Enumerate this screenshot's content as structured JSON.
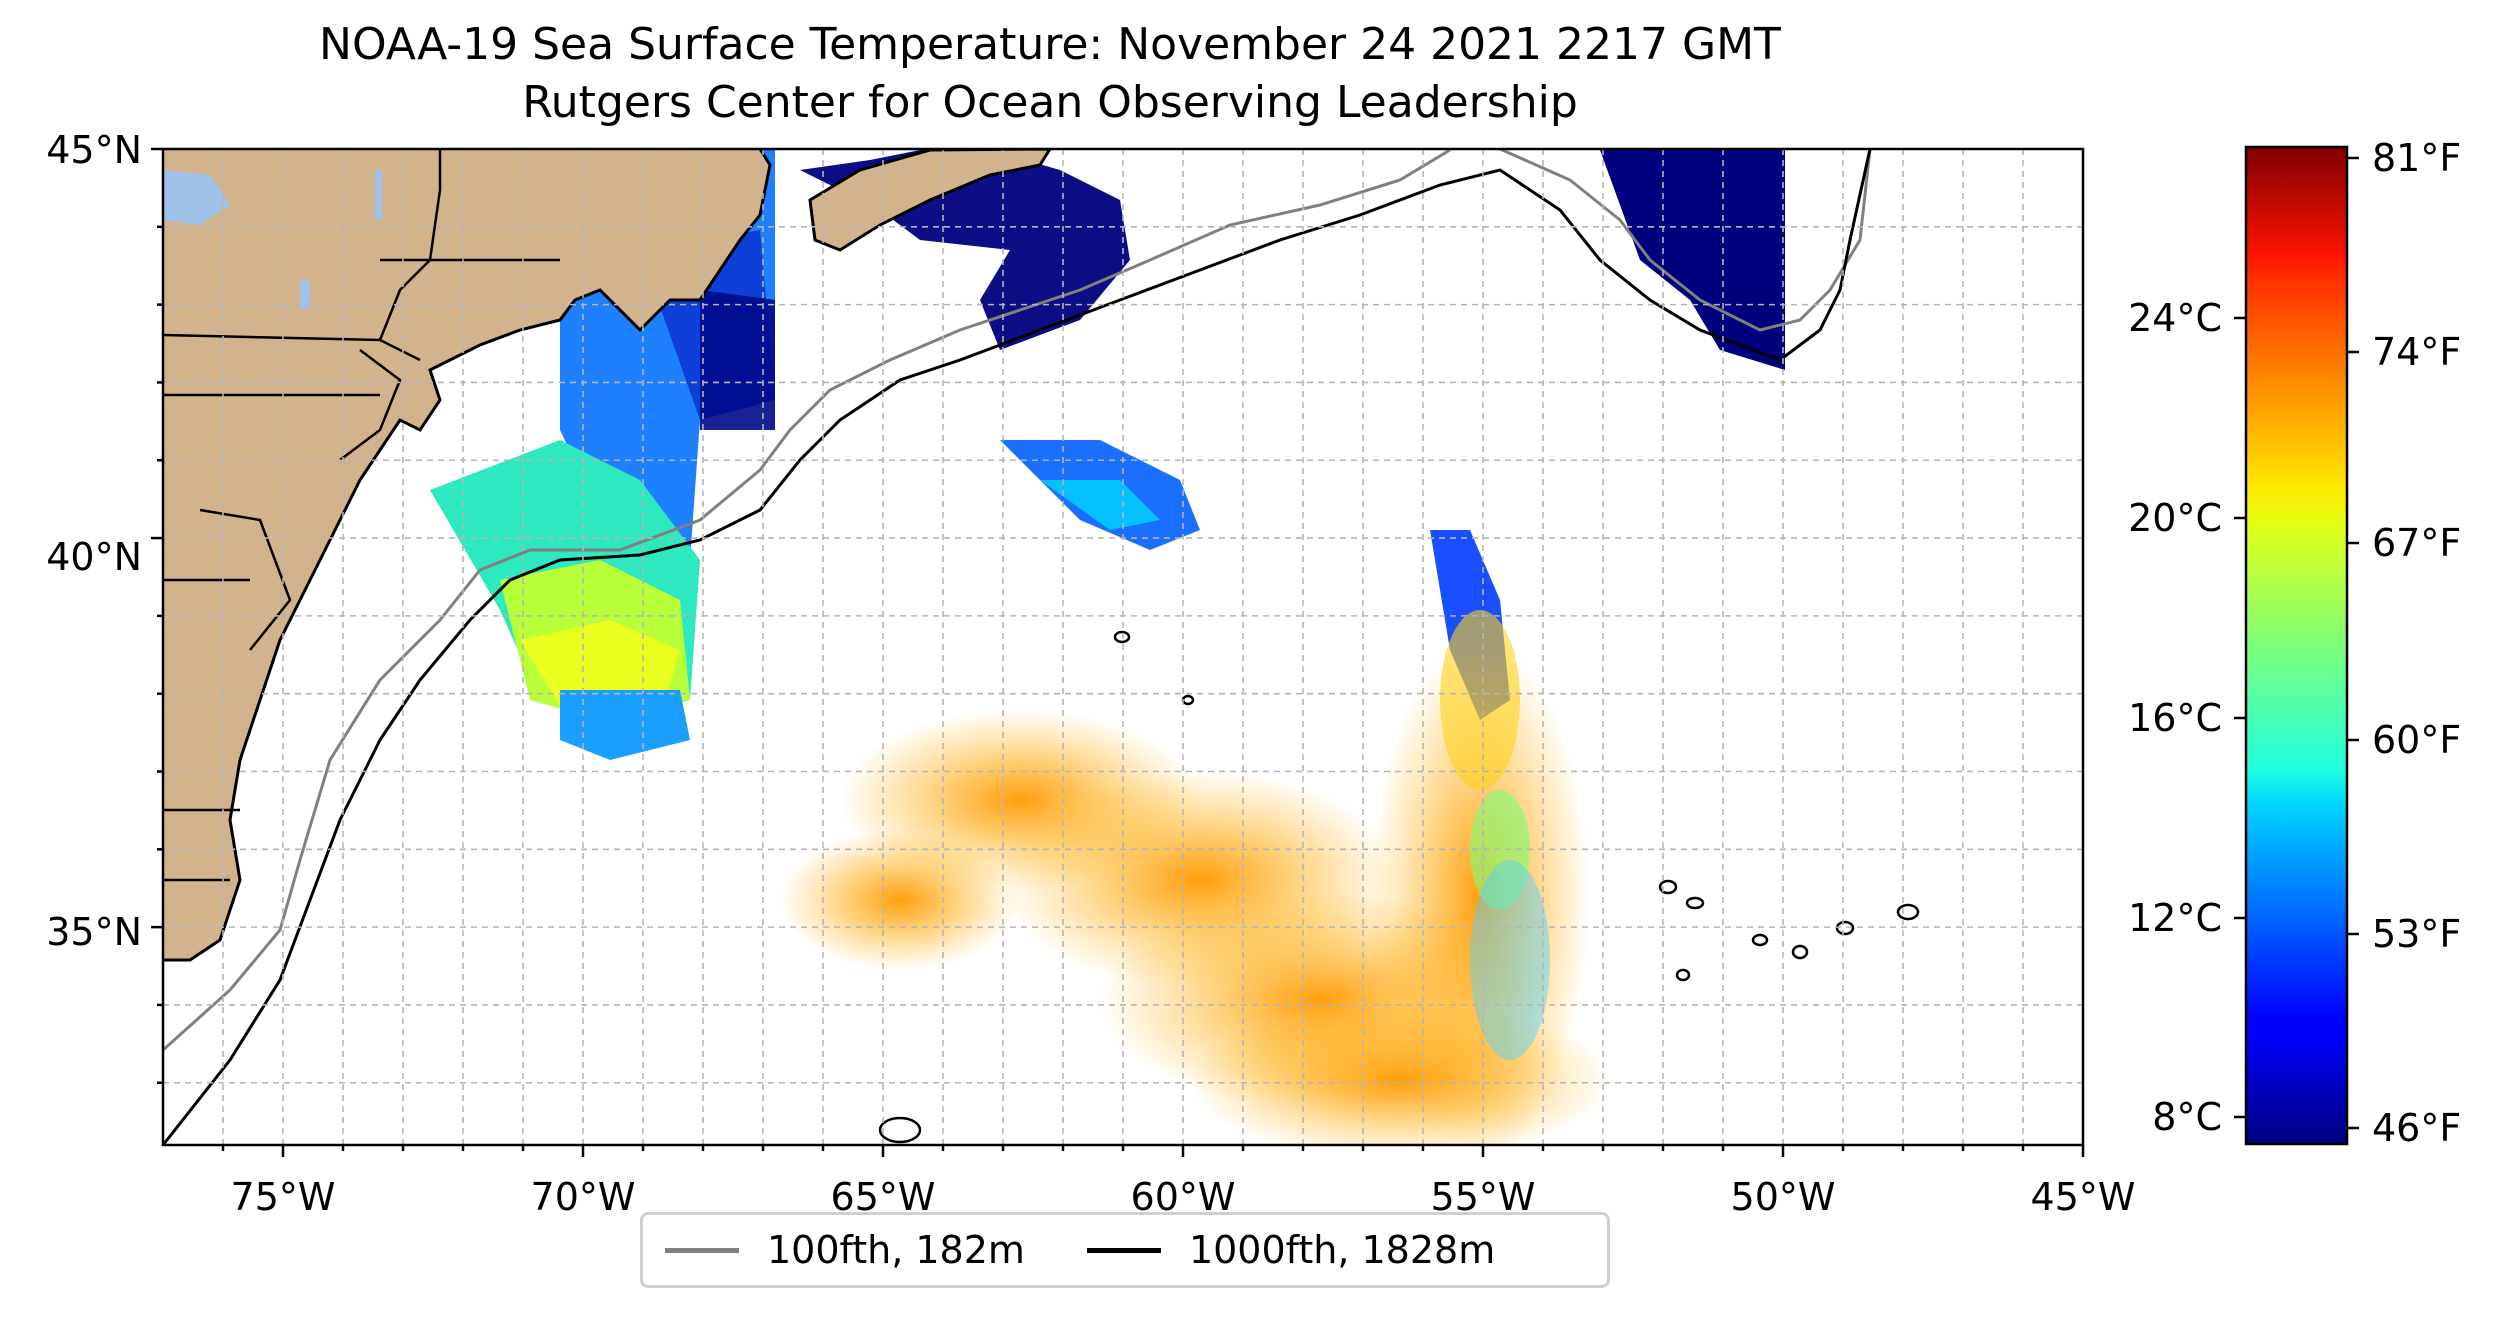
{
  "title": "NOAA-19 Sea Surface Temperature: November 24 2021 2217 GMT",
  "subtitle": "Rutgers Center for Ocean Observing Leadership",
  "colors": {
    "land": "#d2b48c",
    "lakes": "#9fc0e8",
    "grid": "#b0b0b0",
    "bathy_100": "#808080",
    "bathy_1000": "#000000"
  },
  "map": {
    "lon_range": [
      -77,
      -45
    ],
    "lat_range": [
      32.2,
      45
    ],
    "gridlines": "dashed",
    "lon_ticks": [
      "75°W",
      "70°W",
      "65°W",
      "60°W",
      "55°W",
      "50°W",
      "45°W"
    ],
    "lat_ticks": [
      "45°N",
      "40°N",
      "35°N"
    ]
  },
  "colorbar": {
    "colormap": "jet",
    "celsius_ticks": [
      "24°C",
      "20°C",
      "16°C",
      "12°C",
      "8°C"
    ],
    "fahrenheit_ticks": [
      "81°F",
      "74°F",
      "67°F",
      "60°F",
      "53°F",
      "46°F"
    ]
  },
  "legend": {
    "items": [
      {
        "label": "100fth, 182m",
        "color": "#808080"
      },
      {
        "label": "1000fth, 1828m",
        "color": "#000000"
      }
    ]
  }
}
